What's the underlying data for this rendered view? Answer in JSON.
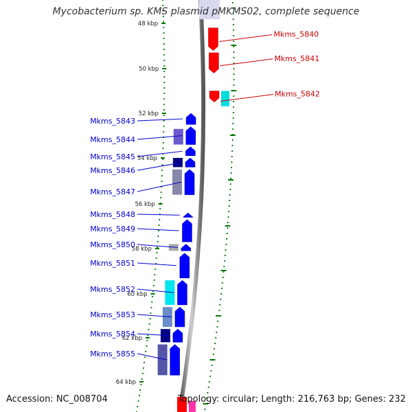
{
  "title": "Mycobacterium sp. KMS plasmid pMKMS02, complete sequence",
  "footer": {
    "accession": "Accession: NC_008704",
    "stats": "Topology: circular; Length: 216,763 bp; Genes: 232"
  },
  "kbp_ticks": [
    {
      "label": "48 kbp",
      "kbp": 48
    },
    {
      "label": "50 kbp",
      "kbp": 50
    },
    {
      "label": "52 kbp",
      "kbp": 52
    },
    {
      "label": "54 kbp",
      "kbp": 54
    },
    {
      "label": "56 kbp",
      "kbp": 56
    },
    {
      "label": "58 kbp",
      "kbp": 58
    },
    {
      "label": "60 kbp",
      "kbp": 60
    },
    {
      "label": "62 kbp",
      "kbp": 62
    },
    {
      "label": "64 kbp",
      "kbp": 64
    }
  ],
  "genes_forward": [
    {
      "name": "Mkms_5840",
      "start_kbp": 48.2,
      "end_kbp": 49.2,
      "color": "#ff0000"
    },
    {
      "name": "Mkms_5841",
      "start_kbp": 49.3,
      "end_kbp": 50.2,
      "color": "#ff0000"
    },
    {
      "name": "Mkms_5842",
      "start_kbp": 51.0,
      "end_kbp": 51.5,
      "color": "#ff0000"
    }
  ],
  "genes_reverse": [
    {
      "name": "Mkms_5843",
      "start_kbp": 52.0,
      "end_kbp": 52.5,
      "color": "#0000ff"
    },
    {
      "name": "Mkms_5844",
      "start_kbp": 52.6,
      "end_kbp": 53.4,
      "color": "#0000ff"
    },
    {
      "name": "Mkms_5845",
      "start_kbp": 53.5,
      "end_kbp": 53.9,
      "color": "#0000ff"
    },
    {
      "name": "Mkms_5846",
      "start_kbp": 54.0,
      "end_kbp": 54.4,
      "color": "#0000ff"
    },
    {
      "name": "Mkms_5847",
      "start_kbp": 54.5,
      "end_kbp": 55.6,
      "color": "#0000ff"
    },
    {
      "name": "Mkms_5848",
      "start_kbp": 56.4,
      "end_kbp": 56.6,
      "color": "#0000ff"
    },
    {
      "name": "Mkms_5849",
      "start_kbp": 56.7,
      "end_kbp": 57.7,
      "color": "#0000ff"
    },
    {
      "name": "Mkms_5850",
      "start_kbp": 57.8,
      "end_kbp": 58.1,
      "color": "#0000ff"
    },
    {
      "name": "Mkms_5851",
      "start_kbp": 58.2,
      "end_kbp": 59.3,
      "color": "#0000ff"
    },
    {
      "name": "Mkms_5852",
      "start_kbp": 59.4,
      "end_kbp": 60.5,
      "color": "#0000ff"
    },
    {
      "name": "Mkms_5853",
      "start_kbp": 60.6,
      "end_kbp": 61.5,
      "color": "#0000ff"
    },
    {
      "name": "Mkms_5854",
      "start_kbp": 61.6,
      "end_kbp": 62.2,
      "color": "#0000ff"
    },
    {
      "name": "Mkms_5855",
      "start_kbp": 62.3,
      "end_kbp": 63.7,
      "color": "#0000ff"
    }
  ],
  "colors": {
    "forward_label": "#cc0000",
    "reverse_label": "#0000cc",
    "tick_green": "#007700",
    "backbone": "#777777"
  }
}
